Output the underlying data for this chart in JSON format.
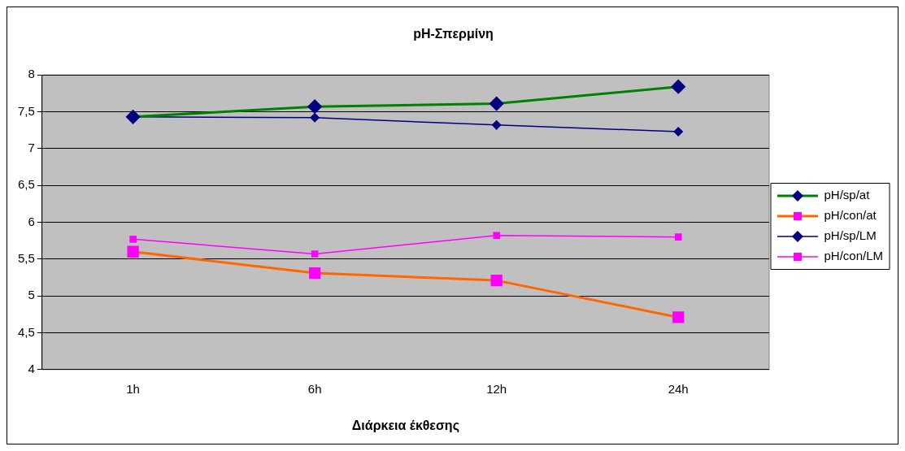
{
  "chart_data": {
    "type": "line",
    "title": "pH-Σπερμίνη",
    "xlabel": "Διάρκεια έκθεσης",
    "categories": [
      "1h",
      "6h",
      "12h",
      "24h"
    ],
    "series": [
      {
        "name": "pH/sp/at",
        "color": "#008000",
        "colors": [
          "#000080",
          "#000080",
          "#000080",
          "#000080"
        ],
        "marker": "diamond",
        "values": [
          7.43,
          7.57,
          7.61,
          7.84
        ]
      },
      {
        "name": "pH/con/at",
        "color": "#ff6600",
        "colors": [
          "#ff00ff",
          "#ff00ff",
          "#ff00ff",
          "#ff00ff"
        ],
        "marker": "square",
        "values": [
          5.6,
          5.31,
          5.21,
          4.71
        ]
      },
      {
        "name": "pH/sp/LM",
        "color": "#000080",
        "colors": [
          "#000080",
          "#000080",
          "#000080",
          "#000080"
        ],
        "marker": "diamond",
        "values": [
          7.43,
          7.42,
          7.32,
          7.23
        ]
      },
      {
        "name": "pH/con/LM",
        "color": "#ff00ff",
        "colors": [
          "#ff00ff",
          "#ff00ff",
          "#ff00ff",
          "#ff00ff"
        ],
        "marker": "square",
        "values": [
          5.77,
          5.57,
          5.82,
          5.8
        ]
      }
    ],
    "ylim": [
      4,
      8
    ],
    "yticks": [
      4,
      {
        "value": 4.5,
        "label": "4,5"
      },
      5,
      {
        "value": 5.5,
        "label": "5,5"
      },
      6,
      {
        "value": 6.5,
        "label": "6,5"
      },
      7,
      {
        "value": 7.5,
        "label": "7,5"
      },
      8
    ],
    "grid": "y",
    "legend": "right"
  }
}
